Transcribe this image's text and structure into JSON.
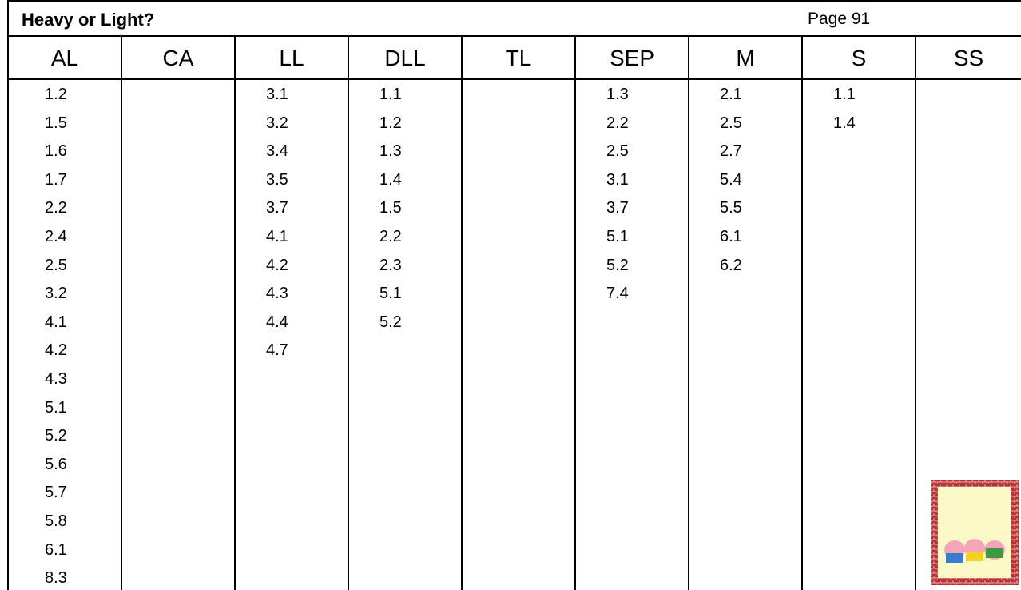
{
  "table": {
    "title": "Heavy or Light?",
    "page": "Page 91",
    "columns": [
      {
        "header": "AL",
        "values": [
          "1.2",
          "1.5",
          "1.6",
          "1.7",
          "2.2",
          "2.4",
          "2.5",
          "3.2",
          "4.1",
          "4.2",
          "4.3",
          "5.1",
          "5.2",
          "5.6",
          "5.7",
          "5.8",
          "6.1",
          "8.3"
        ]
      },
      {
        "header": "CA",
        "values": []
      },
      {
        "header": "LL",
        "values": [
          "3.1",
          "3.2",
          "3.4",
          "3.5",
          "3.7",
          "4.1",
          "4.2",
          "4.3",
          "4.4",
          "4.7"
        ]
      },
      {
        "header": "DLL",
        "values": [
          "1.1",
          "1.2",
          "1.3",
          "1.4",
          "1.5",
          "2.2",
          "2.3",
          "5.1",
          "5.2"
        ]
      },
      {
        "header": "TL",
        "values": []
      },
      {
        "header": "SEP",
        "values": [
          "1.3",
          "2.2",
          "2.5",
          "3.1",
          "3.7",
          "5.1",
          "5.2",
          "7.4"
        ]
      },
      {
        "header": "M",
        "values": [
          "2.1",
          "2.5",
          "2.7",
          "5.4",
          "5.5",
          "6.1",
          "6.2"
        ]
      },
      {
        "header": "S",
        "values": [
          "1.1",
          "1.4"
        ]
      },
      {
        "header": "SS",
        "values": []
      }
    ]
  }
}
